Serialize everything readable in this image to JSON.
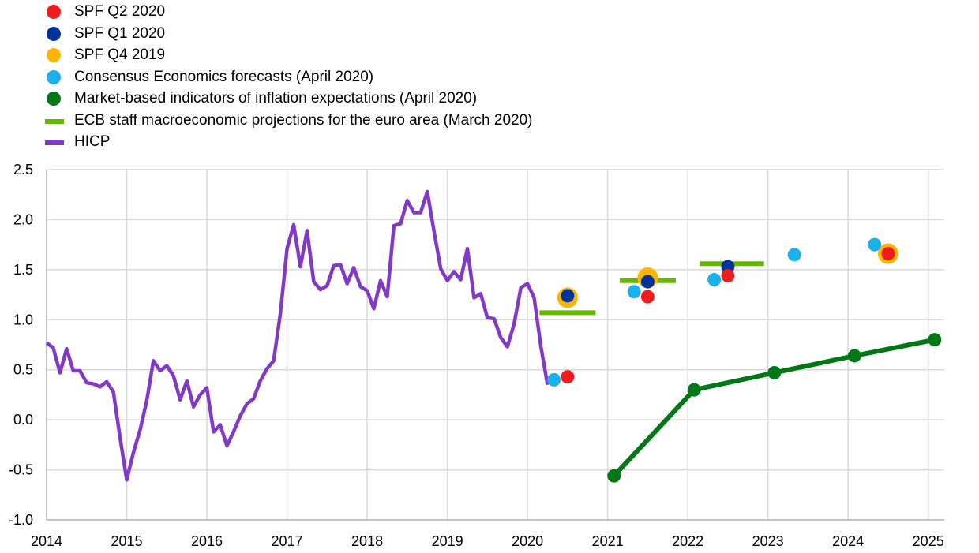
{
  "chart_data": {
    "type": "line",
    "title": "",
    "xlabel": "",
    "ylabel": "",
    "xlim": [
      2014,
      2025.2
    ],
    "ylim": [
      -1.0,
      2.5
    ],
    "grid": true,
    "legend_placement": "top-left",
    "x_ticks": [
      "2014",
      "2015",
      "2016",
      "2017",
      "2018",
      "2019",
      "2020",
      "2021",
      "2022",
      "2023",
      "2024",
      "2025"
    ],
    "y_ticks": [
      "-1.0",
      "-0.5",
      "0.0",
      "0.5",
      "1.0",
      "1.5",
      "2.0",
      "2.5"
    ],
    "legend": [
      {
        "label": "SPF Q2 2020",
        "color": "#ee1c1c",
        "marker": "dot"
      },
      {
        "label": "SPF Q1 2020",
        "color": "#003399",
        "marker": "dot"
      },
      {
        "label": "SPF Q4 2019",
        "color": "#ffb400",
        "marker": "dot"
      },
      {
        "label": "Consensus Economics forecasts (April 2020)",
        "color": "#1ab1ea",
        "marker": "dot"
      },
      {
        "label": "Market-based indicators of inflation expectations (April 2020)",
        "color": "#007816",
        "marker": "dot"
      },
      {
        "label": "ECB staff macroeconomic projections for the euro area (March 2020)",
        "color": "#65b800",
        "marker": "bar"
      },
      {
        "label": "HICP",
        "color": "#8139c6",
        "marker": "bar"
      }
    ],
    "series": [
      {
        "name": "HICP",
        "type": "line",
        "color": "#8139c6",
        "x": [
          2014.0,
          2014.083,
          2014.167,
          2014.25,
          2014.333,
          2014.417,
          2014.5,
          2014.583,
          2014.667,
          2014.75,
          2014.833,
          2014.917,
          2015.0,
          2015.083,
          2015.167,
          2015.25,
          2015.333,
          2015.417,
          2015.5,
          2015.583,
          2015.667,
          2015.75,
          2015.833,
          2015.917,
          2016.0,
          2016.083,
          2016.167,
          2016.25,
          2016.333,
          2016.417,
          2016.5,
          2016.583,
          2016.667,
          2016.75,
          2016.833,
          2016.917,
          2017.0,
          2017.083,
          2017.167,
          2017.25,
          2017.333,
          2017.417,
          2017.5,
          2017.583,
          2017.667,
          2017.75,
          2017.833,
          2017.917,
          2018.0,
          2018.083,
          2018.167,
          2018.25,
          2018.333,
          2018.417,
          2018.5,
          2018.583,
          2018.667,
          2018.75,
          2018.833,
          2018.917,
          2019.0,
          2019.083,
          2019.167,
          2019.25,
          2019.333,
          2019.417,
          2019.5,
          2019.583,
          2019.667,
          2019.75,
          2019.833,
          2019.917,
          2020.0,
          2020.083,
          2020.167,
          2020.25
        ],
        "y": [
          0.77,
          0.72,
          0.47,
          0.71,
          0.49,
          0.49,
          0.37,
          0.36,
          0.33,
          0.38,
          0.28,
          -0.18,
          -0.6,
          -0.33,
          -0.1,
          0.19,
          0.59,
          0.49,
          0.54,
          0.44,
          0.2,
          0.39,
          0.13,
          0.25,
          0.32,
          -0.12,
          -0.05,
          -0.26,
          -0.12,
          0.04,
          0.16,
          0.21,
          0.39,
          0.51,
          0.59,
          1.06,
          1.71,
          1.95,
          1.53,
          1.89,
          1.38,
          1.3,
          1.34,
          1.54,
          1.55,
          1.36,
          1.52,
          1.33,
          1.29,
          1.11,
          1.39,
          1.23,
          1.94,
          1.96,
          2.19,
          2.07,
          2.07,
          2.28,
          1.89,
          1.51,
          1.39,
          1.48,
          1.4,
          1.71,
          1.22,
          1.26,
          1.02,
          1.01,
          0.82,
          0.73,
          0.96,
          1.32,
          1.36,
          1.22,
          0.73,
          0.35
        ]
      },
      {
        "name": "ECB staff macroeconomic projections for the euro area (March 2020)",
        "type": "segments",
        "color": "#65b800",
        "segments": [
          {
            "x": [
              2020.15,
              2020.85
            ],
            "y": 1.07
          },
          {
            "x": [
              2021.15,
              2021.85
            ],
            "y": 1.39
          },
          {
            "x": [
              2022.15,
              2022.95
            ],
            "y": 1.56
          }
        ]
      },
      {
        "name": "Market-based indicators of inflation expectations (April 2020)",
        "type": "line-markers",
        "color": "#007816",
        "x": [
          2021.08,
          2022.08,
          2023.08,
          2024.08,
          2025.08
        ],
        "y": [
          -0.56,
          0.3,
          0.47,
          0.64,
          0.8
        ]
      },
      {
        "name": "SPF Q4 2019",
        "type": "scatter",
        "color": "#ffb400",
        "size": 13,
        "x": [
          2020.5,
          2021.5,
          2024.5
        ],
        "y": [
          1.22,
          1.42,
          1.66
        ]
      },
      {
        "name": "SPF Q1 2020",
        "type": "scatter",
        "color": "#003399",
        "size": 8.5,
        "x": [
          2020.5,
          2021.5,
          2022.5
        ],
        "y": [
          1.24,
          1.38,
          1.53
        ]
      },
      {
        "name": "SPF Q2 2020",
        "type": "scatter",
        "color": "#ee1c1c",
        "size": 8.5,
        "x": [
          2020.5,
          2021.5,
          2022.5,
          2024.5
        ],
        "y": [
          0.43,
          1.23,
          1.44,
          1.66
        ]
      },
      {
        "name": "Consensus Economics forecasts (April 2020)",
        "type": "scatter",
        "color": "#1ab1ea",
        "size": 8.5,
        "x": [
          2020.33,
          2021.33,
          2022.33,
          2023.33,
          2024.33
        ],
        "y": [
          0.4,
          1.28,
          1.4,
          1.65,
          1.75
        ]
      }
    ]
  }
}
